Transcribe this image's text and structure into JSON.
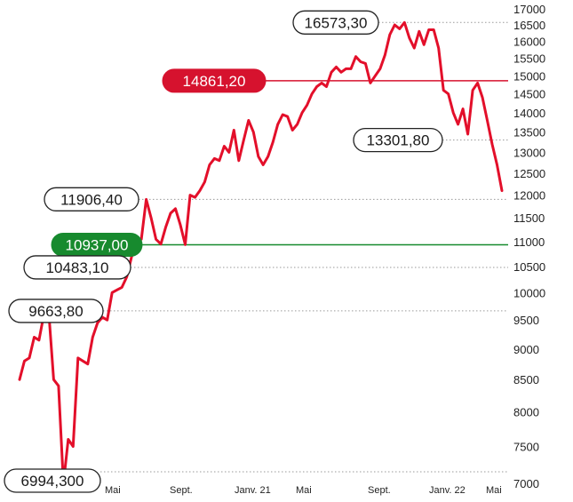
{
  "chart_data": {
    "type": "line",
    "title": "",
    "xlabel": "",
    "ylabel": "",
    "ylim": [
      7000,
      17000
    ],
    "y_ticks": [
      7000,
      7500,
      8000,
      8500,
      9000,
      9500,
      10000,
      10500,
      11000,
      11500,
      12000,
      12500,
      13000,
      13500,
      14000,
      14500,
      15000,
      15500,
      16000,
      16500,
      17000
    ],
    "y_scale": "log",
    "x_tick_labels": [
      "Mai",
      "Sept.",
      "Janv. 21",
      "Mai",
      "Sept.",
      "Janv. 22",
      "Mai"
    ],
    "grid": "dotted lines at annotated values",
    "colors": {
      "line": "#e30f2a",
      "red_label": "#d6122e",
      "green_label": "#178a2e",
      "grid": "#9a9a9a"
    },
    "series": [
      {
        "values": [
          8500,
          8800,
          8850,
          9200,
          9150,
          9600,
          9640,
          8500,
          8400,
          7000,
          7600,
          7500,
          8850,
          8800,
          8750,
          9200,
          9450,
          9550,
          9500,
          10000,
          10050,
          10100,
          10300,
          10700,
          11000,
          11050,
          11906,
          11500,
          11050,
          10950,
          11300,
          11600,
          11700,
          11350,
          10940,
          12000,
          11950,
          12100,
          12300,
          12700,
          12850,
          12800,
          13150,
          13000,
          13550,
          12800,
          13300,
          13800,
          13500,
          12900,
          12700,
          12900,
          13250,
          13700,
          13950,
          13900,
          13550,
          13700,
          14000,
          14200,
          14500,
          14700,
          14800,
          14700,
          15100,
          15250,
          15100,
          15200,
          15200,
          15550,
          15400,
          15350,
          14800,
          15000,
          15200,
          15600,
          16200,
          16500,
          16380,
          16573,
          16100,
          15800,
          16300,
          15900,
          16350,
          16350,
          15800,
          14600,
          14500,
          14000,
          13700,
          14100,
          13450,
          14600,
          14800,
          14400,
          13800,
          13200,
          12700,
          12100
        ]
      }
    ],
    "annotations": [
      {
        "label": "16573,30",
        "value": 16573.3,
        "style": "outline"
      },
      {
        "label": "14861,20",
        "value": 14861.2,
        "style": "red"
      },
      {
        "label": "13301,80",
        "value": 13301.8,
        "style": "outline"
      },
      {
        "label": "11906,40",
        "value": 11906.4,
        "style": "outline"
      },
      {
        "label": "10937,00",
        "value": 10937.0,
        "style": "green"
      },
      {
        "label": "10483,10",
        "value": 10483.1,
        "style": "outline"
      },
      {
        "label": "9663,80",
        "value": 9663.8,
        "style": "outline"
      },
      {
        "label": "6994,300",
        "value": 6994.3,
        "style": "outline"
      }
    ]
  }
}
